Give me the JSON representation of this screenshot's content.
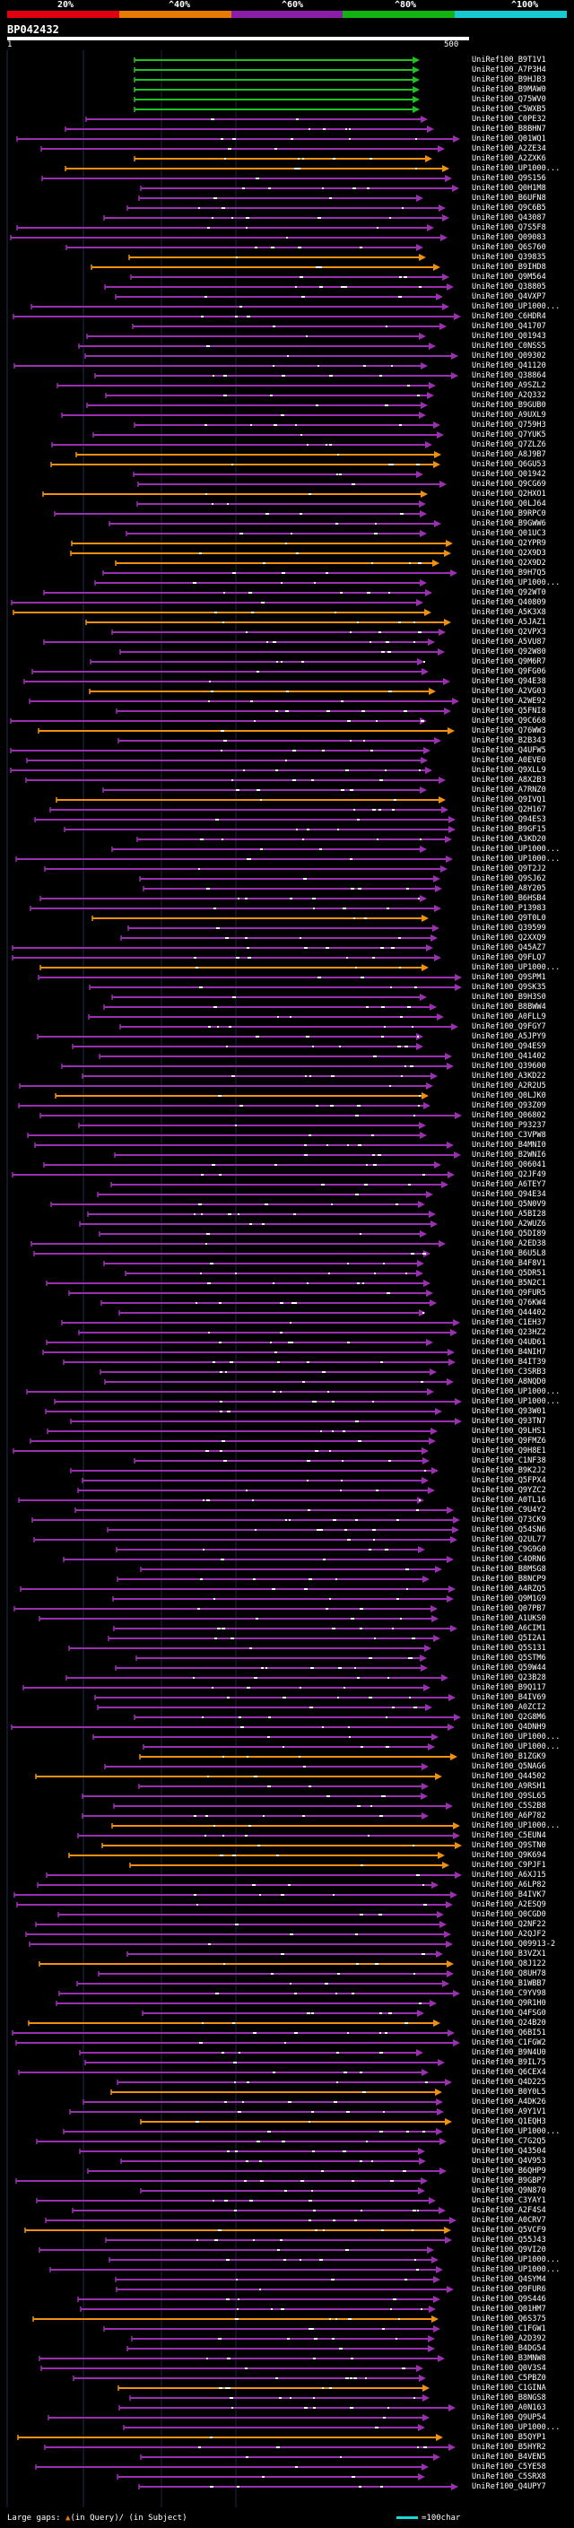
{
  "header": {
    "colors": [
      "#e00010",
      "#e87a00",
      "#8a1ea8",
      "#12b312",
      "#17c9d0"
    ],
    "percent_labels": [
      "20%",
      "^40%",
      "^60%",
      "^80%",
      "^100%"
    ],
    "query_title": "BP042432",
    "scale_start": "1",
    "scale_end": "500"
  },
  "legend": {
    "large_gaps": "Large gaps: ",
    "in_query": "(in Query)",
    "in_subject": "/ (in Subject)",
    "scale_label": "=100char"
  },
  "hits": [
    "UniRef100_B9T1V1",
    "UniRef100_A7P3H4",
    "UniRef100_B9HJB3",
    "UniRef100_B9MAW0",
    "UniRef100_Q75WV0",
    "UniRef100_C5WXB5",
    "UniRef100_C0PE32",
    "UniRef100_B8BHN7",
    "UniRef100_Q01WQ1",
    "UniRef100_A2ZE34",
    "UniRef100_A2ZXK6",
    "UniRef100_UP1000...",
    "UniRef100_Q9S156",
    "UniRef100_Q0H1M8",
    "UniRef100_B6UFN8",
    "UniRef100_Q9C6B5",
    "UniRef100_Q43087",
    "UniRef100_Q7S5F8",
    "UniRef100_Q09083",
    "UniRef100_Q6S760",
    "UniRef100_Q39835",
    "UniRef100_B9IHD8",
    "UniRef100_Q9M564",
    "UniRef100_Q38805",
    "UniRef100_Q4VXP7",
    "UniRef100_UP1000...",
    "UniRef100_C6HDR4",
    "UniRef100_Q41707",
    "UniRef100_Q01943",
    "UniRef100_C0NSS5",
    "UniRef100_Q09302",
    "UniRef100_Q41120",
    "UniRef100_Q38864",
    "UniRef100_A9SZL2",
    "UniRef100_A2Q332",
    "UniRef100_B9GUB0",
    "UniRef100_A9UXL9",
    "UniRef100_Q759H3",
    "UniRef100_Q7YUK5",
    "UniRef100_Q7ZLZ6",
    "UniRef100_A8J9B7",
    "UniRef100_Q6GU53",
    "UniRef100_Q01942",
    "UniRef100_Q9CG69",
    "UniRef100_Q2HXO1",
    "UniRef100_Q0LJ64",
    "UniRef100_B9RPC0",
    "UniRef100_B9GWW6",
    "UniRef100_Q01UC3",
    "UniRef100_Q2YPR9",
    "UniRef100_Q2X9D3",
    "UniRef100_Q2X9D2",
    "UniRef100_B9H7Q5",
    "UniRef100_UP1000...",
    "UniRef100_Q92WT0",
    "UniRef100_Q40809",
    "UniRef100_A5K3X8",
    "UniRef100_A5JAZ1",
    "UniRef100_Q2VPX3",
    "UniRef100_A5VU87",
    "UniRef100_Q92W80",
    "UniRef100_Q9M6R7",
    "UniRef100_Q9FG06",
    "UniRef100_Q94E38",
    "UniRef100_A2VG03",
    "UniRef100_A2WE92",
    "UniRef100_Q5FNI8",
    "UniRef100_Q9C668",
    "UniRef100_Q76WW3",
    "UniRef100_B2B343",
    "UniRef100_Q4UFW5",
    "UniRef100_A0EVE0",
    "UniRef100_Q9XLL9",
    "UniRef100_A8X2B3",
    "UniRef100_A7RNZ0",
    "UniRef100_Q9IVQ1",
    "UniRef100_Q2H167",
    "UniRef100_Q94ES3",
    "UniRef100_B9GF15",
    "UniRef100_A3KD20",
    "UniRef100_UP1000...",
    "UniRef100_UP1000...",
    "UniRef100_Q9T2J2",
    "UniRef100_Q9SJ62",
    "UniRef100_A8Y205",
    "UniRef100_B6HSB4",
    "UniRef100_P13983",
    "UniRef100_Q9T0L0",
    "UniRef100_Q39599",
    "UniRef100_Q2XXQ9",
    "UniRef100_Q45AZ7",
    "UniRef100_Q9FLQ7",
    "UniRef100_UP1000...",
    "UniRef100_Q9SPM1",
    "UniRef100_Q9SK35",
    "UniRef100_B9H3S0",
    "UniRef100_B8BWW4",
    "UniRef100_A0FLL9",
    "UniRef100_Q9FGY7",
    "UniRef100_A5JPY9",
    "UniRef100_Q94ES9",
    "UniRef100_Q41402",
    "UniRef100_Q39600",
    "UniRef100_A3KD22",
    "UniRef100_A2R2U5",
    "UniRef100_Q0LJK0",
    "UniRef100_Q93Z09",
    "UniRef100_Q06802",
    "UniRef100_P93237",
    "UniRef100_C3VPW8",
    "UniRef100_B4MNI0",
    "UniRef100_B2WNI6",
    "UniRef100_Q06041",
    "UniRef100_Q2JF49",
    "UniRef100_A6TEY7",
    "UniRef100_Q94E34",
    "UniRef100_Q5N0V9",
    "UniRef100_A5BI28",
    "UniRef100_A2WUZ6",
    "UniRef100_Q5DI89",
    "UniRef100_A2ED38",
    "UniRef100_B6U5L8",
    "UniRef100_B4F8V1",
    "UniRef100_Q5DR51",
    "UniRef100_B5N2C1",
    "UniRef100_Q9FUR5",
    "UniRef100_Q76KW4",
    "UniRef100_Q44402",
    "UniRef100_C1EH37",
    "UniRef100_Q23HZ2",
    "UniRef100_Q4UD61",
    "UniRef100_B4NIH7",
    "UniRef100_B4IT39",
    "UniRef100_C3SRB3",
    "UniRef100_A8NQD0",
    "UniRef100_UP1000...",
    "UniRef100_UP1000...",
    "UniRef100_Q93W01",
    "UniRef100_Q93TN7",
    "UniRef100_Q9LHS1",
    "UniRef100_Q9FMZ6",
    "UniRef100_Q9H8E1",
    "UniRef100_C1NF38",
    "UniRef100_B9K2J2",
    "UniRef100_Q5FPX4",
    "UniRef100_Q9YZC2",
    "UniRef100_A0TL16",
    "UniRef100_C9U4Y2",
    "UniRef100_Q73CK9",
    "UniRef100_Q54SN6",
    "UniRef100_Q2UL77",
    "UniRef100_C9G9G0",
    "UniRef100_C4ORN6",
    "UniRef100_B8MSG8",
    "UniRef100_B8NCP9",
    "UniRef100_A4RZQ5",
    "UniRef100_Q9M1G9",
    "UniRef100_Q07PB7",
    "UniRef100_A1UKS0",
    "UniRef100_A6CIM1",
    "UniRef100_Q5I2A1",
    "UniRef100_Q5S131",
    "UniRef100_Q5STM6",
    "UniRef100_Q59W44",
    "UniRef100_Q23B28",
    "UniRef100_B9Q117",
    "UniRef100_B4IV69",
    "UniRef100_A0ZCI2",
    "UniRef100_Q2G8M6",
    "UniRef100_Q4DNH9",
    "UniRef100_UP1000...",
    "UniRef100_UP1000...",
    "UniRef100_B1ZGK9",
    "UniRef100_Q5NAG6",
    "UniRef100_Q44502",
    "UniRef100_A9RSH1",
    "UniRef100_Q9SL65",
    "UniRef100_C5S2B8",
    "UniRef100_A6P782",
    "UniRef100_UP1000...",
    "UniRef100_C5EUN4",
    "UniRef100_Q9STN0",
    "UniRef100_Q9K694",
    "UniRef100_C9PJF1",
    "UniRef100_A6XJ15",
    "UniRef100_A6LP82",
    "UniRef100_B4IVK7",
    "UniRef100_A2ESQ9",
    "UniRef100_Q0CGD0",
    "UniRef100_Q2NF22",
    "UniRef100_A2QJF2",
    "UniRef100_Q09913-2",
    "UniRef100_B3VZX1",
    "UniRef100_Q8J122",
    "UniRef100_Q8UH78",
    "UniRef100_B1WBB7",
    "UniRef100_C9YV98",
    "UniRef100_Q9R1H0",
    "UniRef100_Q4FSG0",
    "UniRef100_Q24B20",
    "UniRef100_Q6BI51",
    "UniRef100_C1FGW2",
    "UniRef100_B9N4U0",
    "UniRef100_B9IL75",
    "UniRef100_Q6CEX4",
    "UniRef100_Q4D225",
    "UniRef100_B0Y0L5",
    "UniRef100_A4DK26",
    "UniRef100_A9Y1V1",
    "UniRef100_Q1EQH3",
    "UniRef100_UP1000...",
    "UniRef100_C7G2Q5",
    "UniRef100_Q43504",
    "UniRef100_Q4V953",
    "UniRef100_B6QHP9",
    "UniRef100_B9GBP7",
    "UniRef100_Q9N870",
    "UniRef100_C3YAY1",
    "UniRef100_A2F4S4",
    "UniRef100_A0CRV7",
    "UniRef100_Q5VCF9",
    "UniRef100_Q55J43",
    "UniRef100_Q9VI20",
    "UniRef100_UP1000...",
    "UniRef100_UP1000...",
    "UniRef100_Q4SYM4",
    "UniRef100_Q9FUR6",
    "UniRef100_Q9S446",
    "UniRef100_Q01HM7",
    "UniRef100_Q6S375",
    "UniRef100_C1FGW1",
    "UniRef100_A2D392",
    "UniRef100_B4DG54",
    "UniRef100_B3MNW8",
    "UniRef100_Q0V3S4",
    "UniRef100_C5PBZ0",
    "UniRef100_C1GINA",
    "UniRef100_B8NGS8",
    "UniRef100_A0N163",
    "UniRef100_Q9UP54",
    "UniRef100_UP1000...",
    "UniRef100_B5QYP1",
    "UniRef100_B5HYR2",
    "UniRef100_B4VEN5",
    "UniRef100_C5YE58",
    "UniRef100_C5SRX8",
    "UniRef100_Q4UPY7"
  ]
}
